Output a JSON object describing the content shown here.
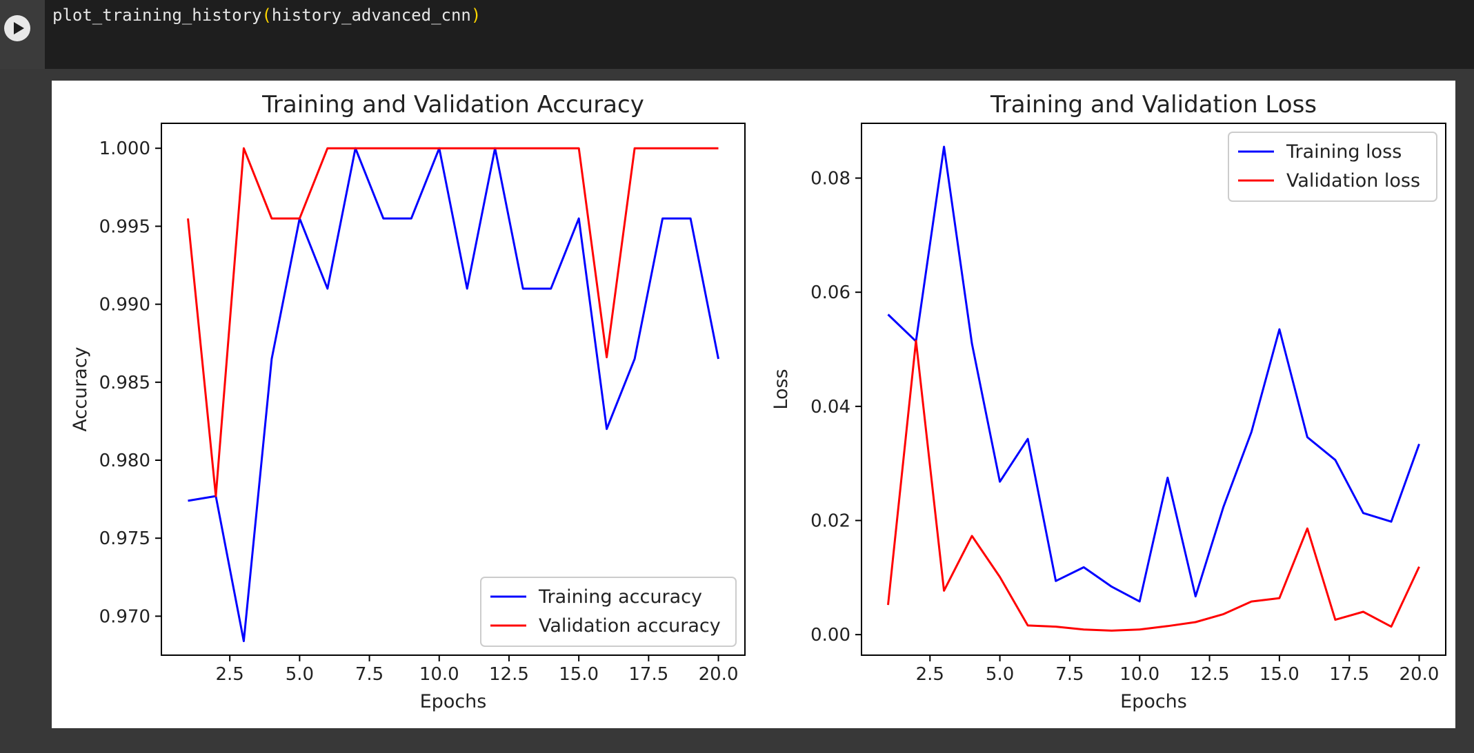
{
  "code_cell": {
    "func": "plot_training_history",
    "open_paren": "(",
    "arg": "history_advanced_cnn",
    "close_paren": ")",
    "run_icon": "play-icon"
  },
  "chart_data": [
    {
      "type": "line",
      "title": "Training and Validation Accuracy",
      "xlabel": "Epochs",
      "ylabel": "Accuracy",
      "xlim": [
        0.05,
        20.95
      ],
      "ylim": [
        0.9675,
        1.0016
      ],
      "xticks": [
        2.5,
        5.0,
        7.5,
        10.0,
        12.5,
        15.0,
        17.5,
        20.0
      ],
      "xtick_labels": [
        "2.5",
        "5.0",
        "7.5",
        "10.0",
        "12.5",
        "15.0",
        "17.5",
        "20.0"
      ],
      "yticks": [
        0.97,
        0.975,
        0.98,
        0.985,
        0.99,
        0.995,
        1.0
      ],
      "ytick_labels": [
        "0.970",
        "0.975",
        "0.980",
        "0.985",
        "0.990",
        "0.995",
        "1.000"
      ],
      "grid": false,
      "legend": "lower-right",
      "x": [
        1,
        2,
        3,
        4,
        5,
        6,
        7,
        8,
        9,
        10,
        11,
        12,
        13,
        14,
        15,
        16,
        17,
        18,
        19,
        20
      ],
      "series": [
        {
          "name": "Training accuracy",
          "color": "#0000ff",
          "values": [
            0.9774,
            0.9777,
            0.9684,
            0.9865,
            0.9955,
            0.991,
            1.0,
            0.9955,
            0.9955,
            1.0,
            0.991,
            1.0,
            0.991,
            0.991,
            0.9955,
            0.982,
            0.9865,
            0.9955,
            0.9955,
            0.9865
          ]
        },
        {
          "name": "Validation accuracy",
          "color": "#ff0000",
          "values": [
            0.9955,
            0.9777,
            1.0,
            0.9955,
            0.9955,
            1.0,
            1.0,
            1.0,
            1.0,
            1.0,
            1.0,
            1.0,
            1.0,
            1.0,
            1.0,
            0.9866,
            1.0,
            1.0,
            1.0,
            1.0
          ]
        }
      ]
    },
    {
      "type": "line",
      "title": "Training and Validation Loss",
      "xlabel": "Epochs",
      "ylabel": "Loss",
      "xlim": [
        0.05,
        20.95
      ],
      "ylim": [
        -0.0036,
        0.0896
      ],
      "xticks": [
        2.5,
        5.0,
        7.5,
        10.0,
        12.5,
        15.0,
        17.5,
        20.0
      ],
      "xtick_labels": [
        "2.5",
        "5.0",
        "7.5",
        "10.0",
        "12.5",
        "15.0",
        "17.5",
        "20.0"
      ],
      "yticks": [
        0.0,
        0.02,
        0.04,
        0.06,
        0.08
      ],
      "ytick_labels": [
        "0.00",
        "0.02",
        "0.04",
        "0.06",
        "0.08"
      ],
      "grid": false,
      "legend": "upper-right",
      "x": [
        1,
        2,
        3,
        4,
        5,
        6,
        7,
        8,
        9,
        10,
        11,
        12,
        13,
        14,
        15,
        16,
        17,
        18,
        19,
        20
      ],
      "series": [
        {
          "name": "Training loss",
          "color": "#0000ff",
          "values": [
            0.0561,
            0.0514,
            0.0855,
            0.051,
            0.0268,
            0.0343,
            0.0094,
            0.0118,
            0.0084,
            0.0058,
            0.0275,
            0.0067,
            0.0224,
            0.0355,
            0.0535,
            0.0346,
            0.0306,
            0.0213,
            0.0198,
            0.0334
          ]
        },
        {
          "name": "Validation loss",
          "color": "#ff0000",
          "values": [
            0.0052,
            0.0515,
            0.0077,
            0.0173,
            0.0101,
            0.0016,
            0.0014,
            0.0009,
            0.0007,
            0.0009,
            0.0015,
            0.0022,
            0.0036,
            0.0058,
            0.0064,
            0.0186,
            0.0026,
            0.004,
            0.0014,
            0.0119
          ]
        }
      ]
    }
  ]
}
